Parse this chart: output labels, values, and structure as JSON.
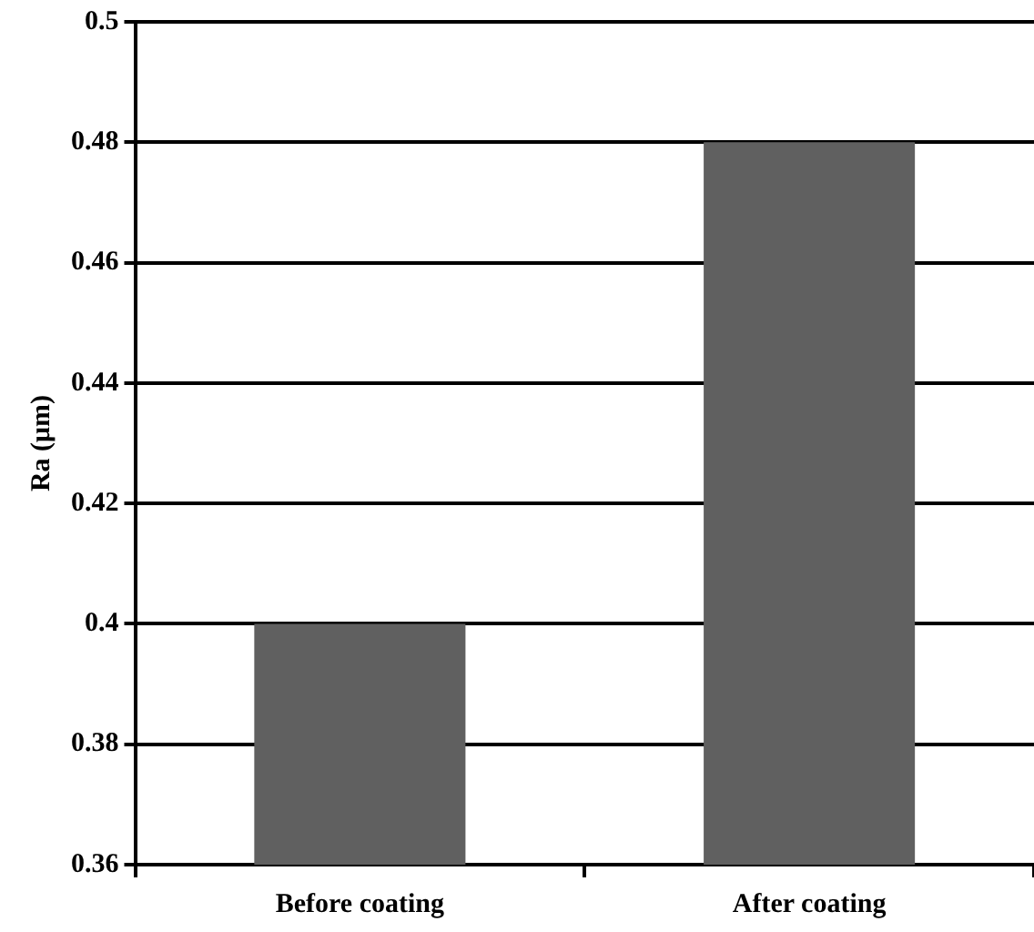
{
  "chart_data": {
    "type": "bar",
    "ylabel": "Ra (μm)",
    "categories": [
      "Before coating",
      "After coating"
    ],
    "values": [
      0.4,
      0.48
    ],
    "color": "#606060",
    "ylim": [
      0.36,
      0.5
    ],
    "yticks": [
      0.36,
      0.38,
      0.4,
      0.42,
      0.44,
      0.46,
      0.48,
      0.5
    ],
    "grid": "y"
  }
}
